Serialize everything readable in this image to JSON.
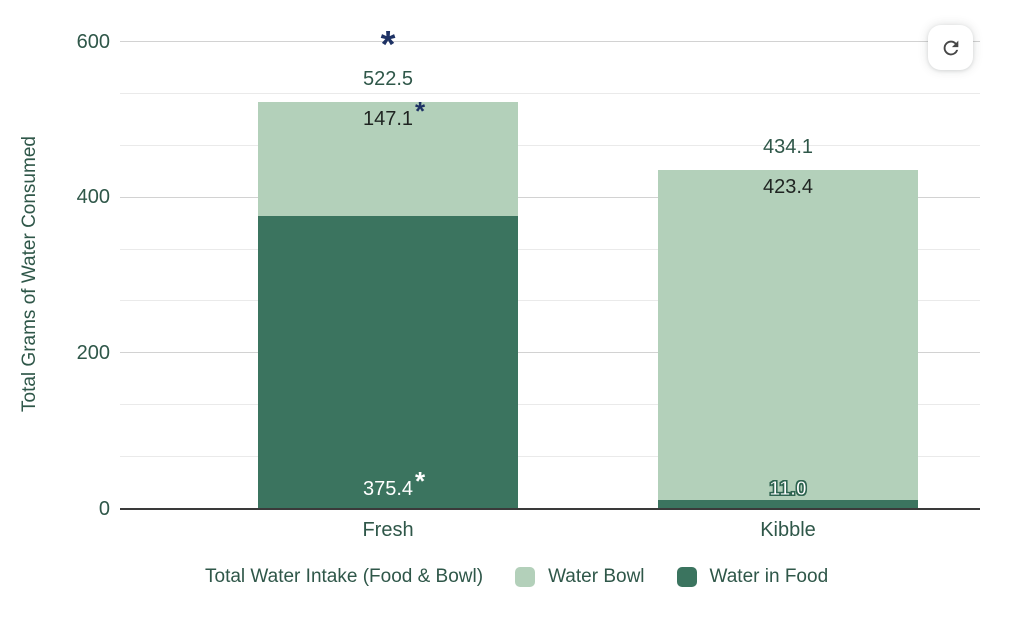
{
  "chart_data": {
    "type": "bar",
    "stacked": true,
    "categories": [
      "Fresh",
      "Kibble"
    ],
    "series": [
      {
        "name": "Water in Food",
        "color": "#3b745f",
        "values": [
          375.4,
          11.0
        ],
        "labels": [
          "375.4",
          "11.0"
        ]
      },
      {
        "name": "Water Bowl",
        "color": "#b3d0ba",
        "values": [
          147.1,
          423.4
        ],
        "labels": [
          "147.1",
          "423.4"
        ]
      }
    ],
    "totals": {
      "values": [
        522.5,
        434.1
      ],
      "labels": [
        "522.5",
        "434.1"
      ]
    },
    "significance_markers": {
      "symbol": "*",
      "above_total": [
        true,
        false
      ],
      "on_bowl_label": [
        true,
        false
      ],
      "on_food_label": [
        true,
        false
      ],
      "outlined_food_label": [
        false,
        true
      ]
    },
    "title": "",
    "xlabel": "",
    "ylabel": "Total Grams of Water Consumed",
    "ylim": [
      0,
      600
    ],
    "yticks": [
      "0",
      "200",
      "400",
      "600"
    ],
    "minor_gridline_divisions": 3,
    "grid": true,
    "legend_position": "bottom"
  },
  "legend": {
    "title": "Total Water Intake (Food & Bowl)",
    "items": [
      {
        "label": "Water Bowl",
        "color": "#b3d0ba"
      },
      {
        "label": "Water in Food",
        "color": "#3b745f"
      }
    ]
  },
  "toolbar": {
    "refresh_icon": "refresh-icon"
  },
  "colors": {
    "background": "#ffffff",
    "bar_light_green": "#b3d0ba",
    "bar_dark_green": "#3b745f",
    "axis_text_green": "#2f5749",
    "inner_label_dark": "#1f2421",
    "inner_label_white": "#ffffff",
    "marker_navy": "#1e3264",
    "marker_white": "#ffffff",
    "outline_green": "#2e6450",
    "grid_major": "#d2d2d2",
    "grid_minor": "#eaeaea",
    "axis_line": "#3a3a3a",
    "refresh_icon_gray": "#474747"
  }
}
